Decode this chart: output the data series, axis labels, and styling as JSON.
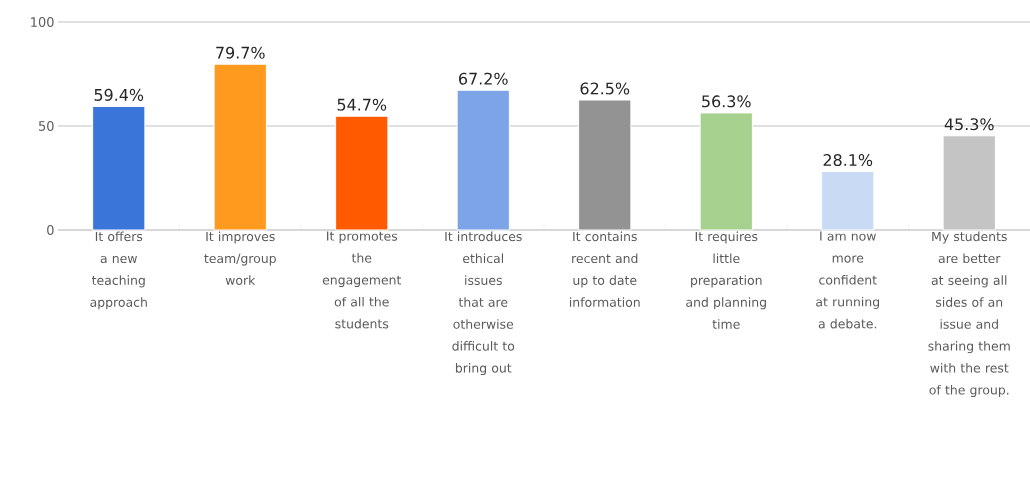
{
  "chart_data": {
    "type": "bar",
    "categories": [
      "It offers a new teaching approach",
      "It improves team/group work",
      "It promotes the engagement of all the students",
      "It introduces ethical issues that are otherwise difficult to bring out",
      "It contains recent and up to date information",
      "It requires little preparation and planning time",
      "I am now more confident at running a debate.",
      "My students are better at seeing all sides of an issue and sharing them with the rest of the group."
    ],
    "values": [
      59.4,
      79.7,
      54.7,
      67.2,
      62.5,
      56.3,
      28.1,
      45.3
    ],
    "value_labels": [
      "59.4%",
      "79.7%",
      "54.7%",
      "67.2%",
      "62.5%",
      "56.3%",
      "28.1%",
      "45.3%"
    ],
    "colors": [
      "#3a75d9",
      "#ff9a1e",
      "#ff5a00",
      "#7ca4e6",
      "#939393",
      "#a6d18f",
      "#c9daf5",
      "#c4c4c4"
    ],
    "ylim": [
      0,
      100
    ],
    "yticks": [
      0,
      50,
      100
    ],
    "grid": "y",
    "legend": false
  }
}
